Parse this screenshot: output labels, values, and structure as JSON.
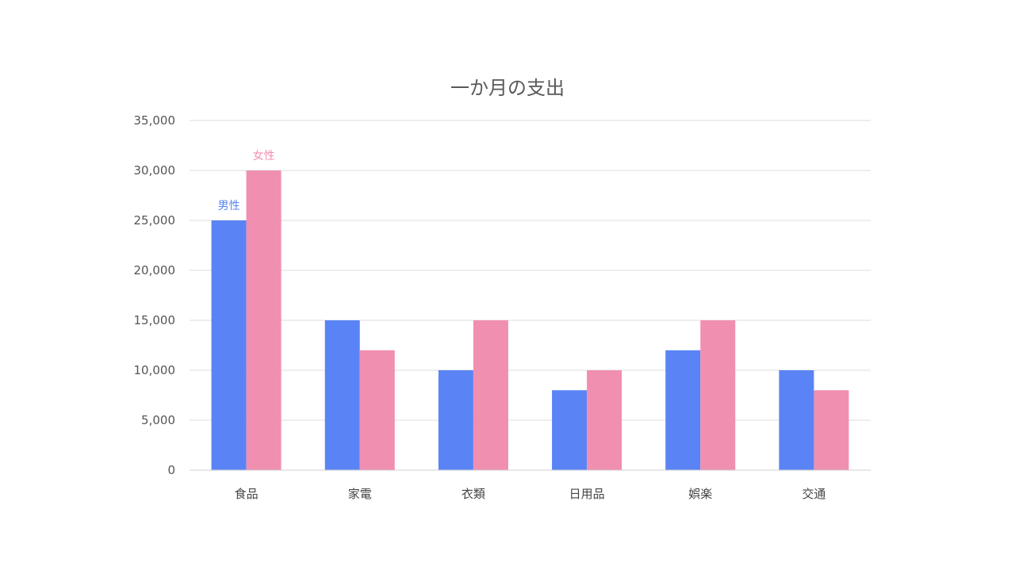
{
  "chart_data": {
    "type": "bar",
    "title": "一か月の支出",
    "xlabel": "",
    "ylabel": "",
    "categories": [
      "食品",
      "家電",
      "衣類",
      "日用品",
      "娯楽",
      "交通"
    ],
    "series": [
      {
        "name": "男性",
        "color": "#5a84f5",
        "values": [
          25000,
          15000,
          10000,
          8000,
          12000,
          10000
        ]
      },
      {
        "name": "女性",
        "color": "#f08fb0",
        "values": [
          30000,
          12000,
          15000,
          10000,
          15000,
          8000
        ]
      }
    ],
    "ylim": [
      0,
      35000
    ],
    "yticks": [
      0,
      5000,
      10000,
      15000,
      20000,
      25000,
      30000,
      35000
    ],
    "ytick_labels": [
      "0",
      "5,000",
      "10,000",
      "15,000",
      "20,000",
      "25,000",
      "30,000",
      "35,000"
    ],
    "grid": true,
    "legend": "inline labels above first category bars"
  }
}
